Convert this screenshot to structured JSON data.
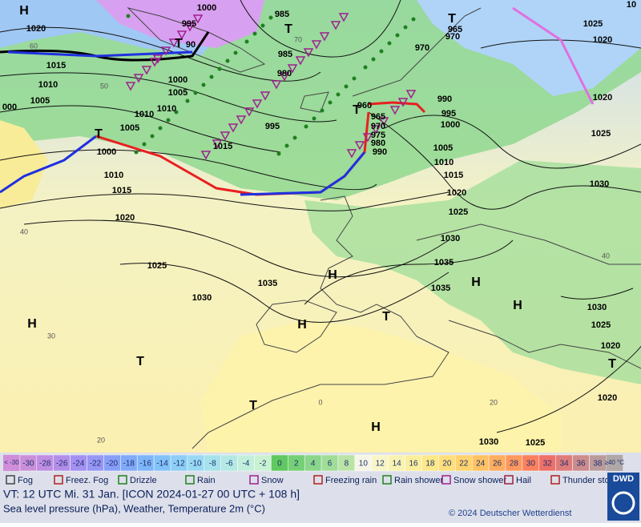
{
  "map": {
    "isobar_labels": [
      "1000",
      "985",
      "995",
      "1020",
      "1015",
      "1010",
      "1005",
      "000",
      "1010",
      "1005",
      "1000",
      "980",
      "985",
      "995",
      "1015",
      "1005",
      "1010",
      "1000",
      "1010",
      "1015",
      "1020",
      "1025",
      "1030",
      "1035",
      "965",
      "970",
      "975",
      "980",
      "990",
      "995",
      "1000",
      "1005",
      "1010",
      "1015",
      "1020",
      "1025",
      "1030",
      "1035",
      "1035",
      "1025",
      "1020",
      "1020",
      "1025",
      "1030",
      "1030",
      "1025",
      "1020",
      "1020",
      "1030",
      "1025",
      "965",
      "970",
      "970",
      "990",
      "960",
      "10",
      "90"
    ],
    "latitude_labels": [
      "60",
      "50",
      "40",
      "30",
      "20",
      "70",
      "40",
      "20",
      "0"
    ],
    "pressure_centers": [
      "H",
      "T",
      "T",
      "T",
      "T",
      "T",
      "H",
      "H",
      "H",
      "T",
      "H",
      "H",
      "T",
      "T",
      "H",
      "T"
    ]
  },
  "colorbar": {
    "below_label": "< -30",
    "values": [
      -30,
      -28,
      -26,
      -24,
      -22,
      -20,
      -18,
      -16,
      -14,
      -12,
      -10,
      -8,
      -6,
      -4,
      -2,
      0,
      2,
      4,
      6,
      8,
      10,
      12,
      14,
      16,
      18,
      20,
      22,
      24,
      26,
      28,
      30,
      32,
      34,
      36,
      38
    ],
    "above_label": "≥40 °C",
    "below_color": "#d08ed8",
    "above_color": "#b0a8a8",
    "colors": [
      "#c98fd8",
      "#bf8ee2",
      "#b28ee9",
      "#a490f0",
      "#9696f4",
      "#889ff7",
      "#80aaf8",
      "#7db6f8",
      "#82c2f8",
      "#8ccef6",
      "#98d9f2",
      "#a6e2ec",
      "#b4e9e4",
      "#c2efdc",
      "#c8f2d2",
      "#5fc95f",
      "#75d075",
      "#8ad68a",
      "#a0dd98",
      "#b9e4a6",
      "#f6f6e6",
      "#f8f6c8",
      "#f8f3b0",
      "#fbef9c",
      "#fde88a",
      "#ffdf7c",
      "#ffd36e",
      "#ffc262",
      "#ffad5e",
      "#ff985e",
      "#fb815e",
      "#ef7068",
      "#de7c7c",
      "#cc8c8c",
      "#bb9a9a"
    ]
  },
  "legend": [
    "Fog",
    "Freez. Fog",
    "Drizzle",
    "Rain",
    "Snow",
    "Freezing rain",
    "Rain shower",
    "Snow shower",
    "Hail",
    "Thunder storm"
  ],
  "footer": {
    "valid_time": "VT: 12 UTC Mi.  31 Jan. [ICON 2024-01-27  00 UTC + 108 h]",
    "description": "Sea level pressure (hPa), Weather, Temperature 2m (°C)",
    "copyright": "© 2024 Deutscher Wetterdienst",
    "logo": "DWD"
  }
}
